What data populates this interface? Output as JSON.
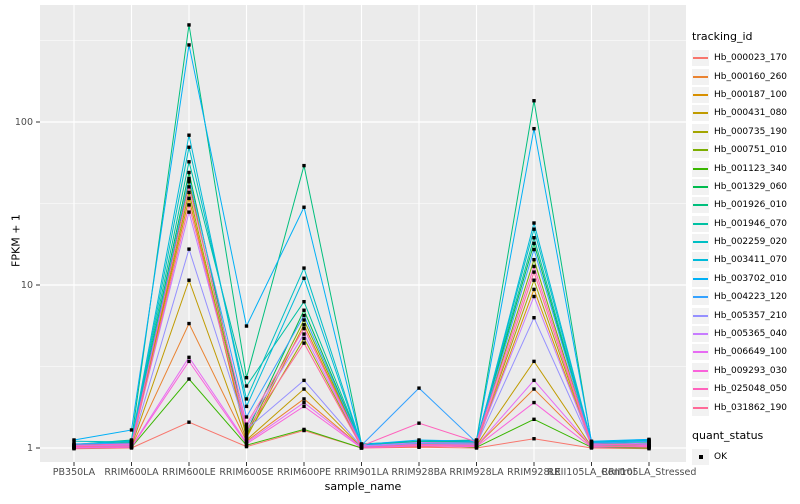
{
  "chart_data": {
    "type": "line",
    "title": "",
    "xlabel": "sample_name",
    "ylabel": "FPKM + 1",
    "y_scale": "log10",
    "y_ticks": [
      1,
      10,
      100
    ],
    "y_tick_labels": [
      "1",
      "10",
      "100"
    ],
    "y_minor_ticks": [
      3.162,
      31.62,
      316.2
    ],
    "ylim": [
      0.82,
      490
    ],
    "grid": true,
    "panel_bg": "#EBEBEB",
    "grid_color": "#FFFFFF",
    "tick_label_color": "#4D4D4D",
    "point_shape": "square",
    "point_color": "#000000",
    "legend_position": "right",
    "legend_title": "tracking_id",
    "categories": [
      "PB350LA",
      "RRIM600LA",
      "RRIM600LE",
      "RRIM600SE",
      "RRIM600PE",
      "RRIM901LA",
      "RRIM928BA",
      "RRIM928LA",
      "RRIM928LE",
      "RRII105LA_Control",
      "RRII105LA_Stressed"
    ],
    "series": [
      {
        "name": "Hb_000023_170",
        "color": "#F8766D",
        "values": [
          0.99,
          1.0,
          1.44,
          1.02,
          1.28,
          1.0,
          1.01,
          1.0,
          1.14,
          1.0,
          0.99
        ]
      },
      {
        "name": "Hb_000160_260",
        "color": "#EA8331",
        "values": [
          1.01,
          1.02,
          5.8,
          1.1,
          2.0,
          1.01,
          1.02,
          1.03,
          2.3,
          1.02,
          1.01
        ]
      },
      {
        "name": "Hb_000187_100",
        "color": "#D89000",
        "values": [
          1.02,
          1.04,
          34,
          1.15,
          5.7,
          1.02,
          1.04,
          1.05,
          9.4,
          1.03,
          1.02
        ]
      },
      {
        "name": "Hb_000431_080",
        "color": "#C09B00",
        "values": [
          1.01,
          1.03,
          10.7,
          1.12,
          2.3,
          1.01,
          1.03,
          1.04,
          3.4,
          1.02,
          1.04
        ]
      },
      {
        "name": "Hb_000735_190",
        "color": "#A3A500",
        "values": [
          1.02,
          1.05,
          37,
          1.18,
          4.7,
          1.02,
          1.05,
          1.06,
          10.7,
          1.04,
          1.03
        ]
      },
      {
        "name": "Hb_000751_010",
        "color": "#7CAE00",
        "values": [
          1.03,
          1.06,
          43,
          1.2,
          6.1,
          1.03,
          1.06,
          1.08,
          14.3,
          1.05,
          1.06
        ]
      },
      {
        "name": "Hb_001123_340",
        "color": "#39B600",
        "values": [
          1.0,
          1.01,
          2.65,
          1.04,
          1.3,
          1.0,
          1.05,
          1.01,
          1.5,
          1.01,
          1.0
        ]
      },
      {
        "name": "Hb_001329_060",
        "color": "#00BB4E",
        "values": [
          1.04,
          1.08,
          49,
          1.25,
          7.0,
          1.04,
          1.08,
          1.1,
          18,
          1.06,
          1.07
        ]
      },
      {
        "name": "Hb_001926_010",
        "color": "#00BF7D",
        "values": [
          1.05,
          1.12,
          394,
          2.7,
          54,
          1.06,
          1.1,
          1.12,
          135,
          1.08,
          1.1
        ]
      },
      {
        "name": "Hb_001946_070",
        "color": "#00C1A3",
        "values": [
          1.04,
          1.1,
          57,
          2.4,
          7.9,
          1.05,
          1.09,
          1.11,
          19.5,
          1.07,
          1.09
        ]
      },
      {
        "name": "Hb_002259_020",
        "color": "#00BFC4",
        "values": [
          1.1,
          1.09,
          70,
          2.0,
          12.7,
          1.04,
          1.07,
          1.09,
          22,
          1.08,
          1.12
        ]
      },
      {
        "name": "Hb_003411_070",
        "color": "#00BBDA",
        "values": [
          1.05,
          1.11,
          83,
          1.8,
          11.0,
          1.03,
          1.06,
          1.07,
          24,
          1.09,
          1.11
        ]
      },
      {
        "name": "Hb_003702_010",
        "color": "#00B0F6",
        "values": [
          1.12,
          1.29,
          297,
          5.6,
          30,
          1.05,
          1.12,
          1.1,
          91,
          1.1,
          1.13
        ]
      },
      {
        "name": "Hb_004223_120",
        "color": "#35A2FF",
        "values": [
          1.06,
          1.07,
          45,
          1.55,
          6.5,
          1.04,
          2.33,
          1.08,
          16.5,
          1.07,
          1.1
        ]
      },
      {
        "name": "Hb_005357_210",
        "color": "#9590FF",
        "values": [
          1.02,
          1.04,
          16.6,
          1.3,
          2.6,
          1.02,
          1.06,
          1.05,
          6.3,
          1.04,
          1.05
        ]
      },
      {
        "name": "Hb_005365_040",
        "color": "#C77CFF",
        "values": [
          1.03,
          1.05,
          28,
          1.35,
          5.0,
          1.03,
          1.08,
          1.07,
          8.5,
          1.05,
          1.07
        ]
      },
      {
        "name": "Hb_006649_100",
        "color": "#E76BF3",
        "values": [
          1.01,
          1.02,
          3.6,
          1.08,
          1.9,
          1.01,
          1.04,
          1.03,
          2.6,
          1.02,
          1.03
        ]
      },
      {
        "name": "Hb_009293_030",
        "color": "#FA62DB",
        "values": [
          1.0,
          1.01,
          3.4,
          1.06,
          1.8,
          1.0,
          1.03,
          1.02,
          1.9,
          1.01,
          1.02
        ]
      },
      {
        "name": "Hb_025048_050",
        "color": "#FF62BC",
        "values": [
          1.04,
          1.06,
          40,
          1.4,
          5.4,
          1.03,
          1.42,
          1.09,
          13.0,
          1.06,
          1.04
        ]
      },
      {
        "name": "Hb_031862_190",
        "color": "#FF6A98",
        "values": [
          1.02,
          1.03,
          31,
          1.28,
          4.4,
          1.01,
          1.05,
          1.04,
          12.0,
          1.03,
          1.01
        ]
      }
    ],
    "quant_legend": {
      "title": "quant_status",
      "items": [
        {
          "label": "OK",
          "shape": "black-square"
        }
      ]
    }
  }
}
